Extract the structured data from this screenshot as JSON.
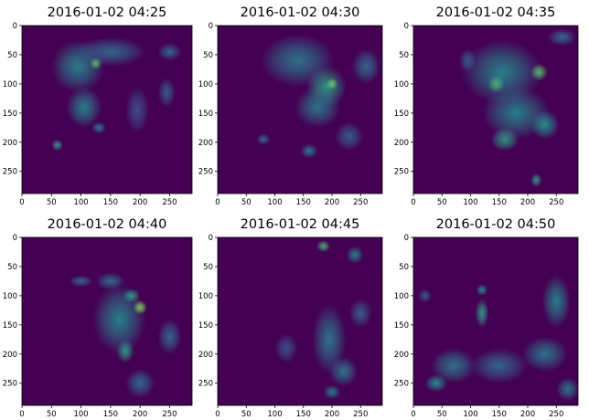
{
  "chart_data": [
    {
      "type": "heatmap",
      "title": "2016-01-02 04:25",
      "xlim": [
        0,
        288
      ],
      "ylim": [
        288,
        0
      ],
      "xticks": [
        0,
        50,
        100,
        150,
        200,
        250
      ],
      "yticks": [
        0,
        50,
        100,
        150,
        200,
        250
      ],
      "colormap": "viridis",
      "background_color": "#440154",
      "blobs": [
        {
          "x": 95,
          "y": 70,
          "sx": 45,
          "sy": 45,
          "v": 0.45
        },
        {
          "x": 150,
          "y": 45,
          "sx": 60,
          "sy": 25,
          "v": 0.35
        },
        {
          "x": 105,
          "y": 140,
          "sx": 30,
          "sy": 35,
          "v": 0.45
        },
        {
          "x": 125,
          "y": 65,
          "sx": 10,
          "sy": 10,
          "v": 0.7
        },
        {
          "x": 60,
          "y": 205,
          "sx": 10,
          "sy": 10,
          "v": 0.55
        },
        {
          "x": 130,
          "y": 175,
          "sx": 12,
          "sy": 10,
          "v": 0.45
        },
        {
          "x": 195,
          "y": 145,
          "sx": 20,
          "sy": 40,
          "v": 0.25
        },
        {
          "x": 245,
          "y": 115,
          "sx": 15,
          "sy": 25,
          "v": 0.3
        },
        {
          "x": 250,
          "y": 45,
          "sx": 20,
          "sy": 15,
          "v": 0.35
        }
      ]
    },
    {
      "type": "heatmap",
      "title": "2016-01-02 04:30",
      "xlim": [
        0,
        288
      ],
      "ylim": [
        288,
        0
      ],
      "xticks": [
        0,
        50,
        100,
        150,
        200,
        250
      ],
      "yticks": [
        0,
        50,
        100,
        150,
        200,
        250
      ],
      "colormap": "viridis",
      "background_color": "#440154",
      "blobs": [
        {
          "x": 140,
          "y": 60,
          "sx": 65,
          "sy": 45,
          "v": 0.4
        },
        {
          "x": 190,
          "y": 105,
          "sx": 35,
          "sy": 35,
          "v": 0.55
        },
        {
          "x": 200,
          "y": 100,
          "sx": 10,
          "sy": 10,
          "v": 0.75
        },
        {
          "x": 175,
          "y": 140,
          "sx": 40,
          "sy": 35,
          "v": 0.4
        },
        {
          "x": 260,
          "y": 70,
          "sx": 25,
          "sy": 30,
          "v": 0.35
        },
        {
          "x": 160,
          "y": 215,
          "sx": 15,
          "sy": 12,
          "v": 0.45
        },
        {
          "x": 80,
          "y": 195,
          "sx": 12,
          "sy": 10,
          "v": 0.35
        },
        {
          "x": 230,
          "y": 190,
          "sx": 25,
          "sy": 25,
          "v": 0.3
        }
      ]
    },
    {
      "type": "heatmap",
      "title": "2016-01-02 04:35",
      "xlim": [
        0,
        288
      ],
      "ylim": [
        288,
        0
      ],
      "xticks": [
        0,
        50,
        100,
        150,
        200,
        250
      ],
      "yticks": [
        0,
        50,
        100,
        150,
        200,
        250
      ],
      "colormap": "viridis",
      "background_color": "#440154",
      "blobs": [
        {
          "x": 155,
          "y": 80,
          "sx": 70,
          "sy": 55,
          "v": 0.45
        },
        {
          "x": 180,
          "y": 150,
          "sx": 60,
          "sy": 45,
          "v": 0.45
        },
        {
          "x": 220,
          "y": 80,
          "sx": 15,
          "sy": 15,
          "v": 0.7
        },
        {
          "x": 145,
          "y": 100,
          "sx": 15,
          "sy": 15,
          "v": 0.65
        },
        {
          "x": 160,
          "y": 195,
          "sx": 25,
          "sy": 20,
          "v": 0.55
        },
        {
          "x": 230,
          "y": 170,
          "sx": 25,
          "sy": 25,
          "v": 0.5
        },
        {
          "x": 215,
          "y": 265,
          "sx": 10,
          "sy": 12,
          "v": 0.55
        },
        {
          "x": 95,
          "y": 60,
          "sx": 15,
          "sy": 20,
          "v": 0.3
        },
        {
          "x": 260,
          "y": 20,
          "sx": 25,
          "sy": 15,
          "v": 0.35
        }
      ]
    },
    {
      "type": "heatmap",
      "title": "2016-01-02 04:40",
      "xlim": [
        0,
        288
      ],
      "ylim": [
        288,
        0
      ],
      "xticks": [
        0,
        50,
        100,
        150,
        200,
        250
      ],
      "yticks": [
        0,
        50,
        100,
        150,
        200,
        250
      ],
      "colormap": "viridis",
      "background_color": "#440154",
      "blobs": [
        {
          "x": 165,
          "y": 140,
          "sx": 45,
          "sy": 60,
          "v": 0.45
        },
        {
          "x": 200,
          "y": 120,
          "sx": 12,
          "sy": 12,
          "v": 0.8
        },
        {
          "x": 185,
          "y": 100,
          "sx": 15,
          "sy": 12,
          "v": 0.55
        },
        {
          "x": 175,
          "y": 195,
          "sx": 15,
          "sy": 20,
          "v": 0.55
        },
        {
          "x": 100,
          "y": 75,
          "sx": 20,
          "sy": 10,
          "v": 0.35
        },
        {
          "x": 150,
          "y": 75,
          "sx": 25,
          "sy": 15,
          "v": 0.35
        },
        {
          "x": 250,
          "y": 170,
          "sx": 20,
          "sy": 30,
          "v": 0.35
        },
        {
          "x": 200,
          "y": 250,
          "sx": 25,
          "sy": 25,
          "v": 0.35
        }
      ]
    },
    {
      "type": "heatmap",
      "title": "2016-01-02 04:45",
      "xlim": [
        0,
        288
      ],
      "ylim": [
        288,
        0
      ],
      "xticks": [
        0,
        50,
        100,
        150,
        200,
        250
      ],
      "yticks": [
        0,
        50,
        100,
        150,
        200,
        250
      ],
      "colormap": "viridis",
      "background_color": "#440154",
      "blobs": [
        {
          "x": 195,
          "y": 175,
          "sx": 30,
          "sy": 60,
          "v": 0.4
        },
        {
          "x": 220,
          "y": 230,
          "sx": 25,
          "sy": 25,
          "v": 0.4
        },
        {
          "x": 185,
          "y": 15,
          "sx": 12,
          "sy": 10,
          "v": 0.65
        },
        {
          "x": 240,
          "y": 30,
          "sx": 15,
          "sy": 15,
          "v": 0.45
        },
        {
          "x": 120,
          "y": 190,
          "sx": 20,
          "sy": 25,
          "v": 0.25
        },
        {
          "x": 250,
          "y": 130,
          "sx": 20,
          "sy": 25,
          "v": 0.3
        },
        {
          "x": 200,
          "y": 265,
          "sx": 15,
          "sy": 12,
          "v": 0.45
        }
      ]
    },
    {
      "type": "heatmap",
      "title": "2016-01-02 04:50",
      "xlim": [
        0,
        288
      ],
      "ylim": [
        288,
        0
      ],
      "xticks": [
        0,
        50,
        100,
        150,
        200,
        250
      ],
      "yticks": [
        0,
        50,
        100,
        150,
        200,
        250
      ],
      "colormap": "viridis",
      "background_color": "#440154",
      "blobs": [
        {
          "x": 70,
          "y": 220,
          "sx": 40,
          "sy": 30,
          "v": 0.4
        },
        {
          "x": 150,
          "y": 220,
          "sx": 50,
          "sy": 30,
          "v": 0.35
        },
        {
          "x": 230,
          "y": 200,
          "sx": 40,
          "sy": 30,
          "v": 0.4
        },
        {
          "x": 250,
          "y": 110,
          "sx": 25,
          "sy": 45,
          "v": 0.45
        },
        {
          "x": 120,
          "y": 130,
          "sx": 12,
          "sy": 25,
          "v": 0.55
        },
        {
          "x": 120,
          "y": 90,
          "sx": 10,
          "sy": 10,
          "v": 0.5
        },
        {
          "x": 40,
          "y": 250,
          "sx": 20,
          "sy": 15,
          "v": 0.5
        },
        {
          "x": 20,
          "y": 100,
          "sx": 12,
          "sy": 12,
          "v": 0.3
        },
        {
          "x": 270,
          "y": 260,
          "sx": 20,
          "sy": 20,
          "v": 0.4
        }
      ]
    }
  ]
}
